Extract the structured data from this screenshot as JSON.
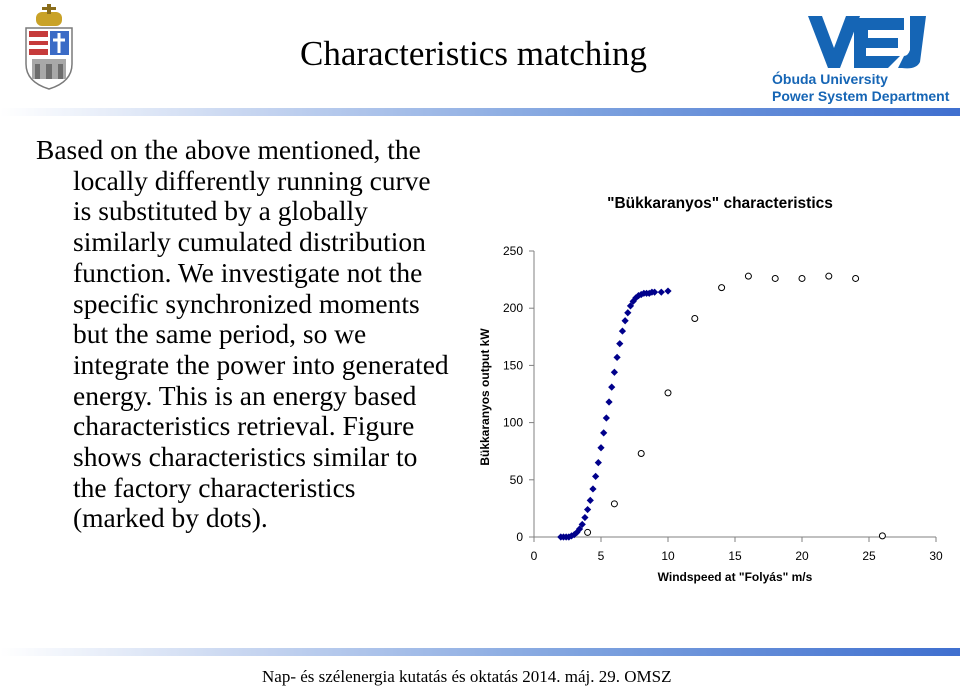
{
  "header": {
    "title": "Characteristics matching",
    "logo_line1": "Óbuda University",
    "logo_line2": "Power System Department",
    "logo_colors": {
      "primary": "#1565b5"
    }
  },
  "body": {
    "paragraph": "Based on the above mentioned, the locally differently running curve is substituted by a globally similarly cumulated distribution function. We investigate not the specific synchronized moments but the same period, so we integrate the power into generated energy. This is an energy based characteristics retrieval. Figure shows characteristics similar to the factory characteristics (marked by dots)."
  },
  "footer": {
    "text": "Nap- és szélenergia kutatás és oktatás 2014. máj. 29. OMSZ"
  },
  "chart_data": {
    "type": "scatter",
    "title": "\"Bükkaranyos\" characteristics",
    "xlabel": "Windspeed at \"Folyás\" m/s",
    "ylabel": "Bükkaranyos output kW",
    "xlim": [
      0,
      30
    ],
    "ylim": [
      0,
      250
    ],
    "xticks": [
      0,
      5,
      10,
      15,
      20,
      25,
      30
    ],
    "yticks": [
      0,
      50,
      100,
      150,
      200,
      250
    ],
    "grid": false,
    "series": [
      {
        "marker": "diamond-filled",
        "color": "#00008b",
        "x": [
          2.0,
          2.2,
          2.4,
          2.6,
          2.8,
          3.0,
          3.2,
          3.4,
          3.6,
          3.8,
          4.0,
          4.2,
          4.4,
          4.6,
          4.8,
          5.0,
          5.2,
          5.4,
          5.6,
          5.8,
          6.0,
          6.2,
          6.4,
          6.6,
          6.8,
          7.0,
          7.2,
          7.4,
          7.6,
          7.8,
          8.0,
          8.2,
          8.4,
          8.6,
          8.8,
          9.0,
          9.5,
          10.0
        ],
        "y": [
          0,
          0,
          0,
          0,
          1,
          2,
          4,
          7,
          11,
          17,
          24,
          32,
          42,
          53,
          65,
          78,
          91,
          104,
          118,
          131,
          144,
          157,
          169,
          180,
          189,
          196,
          202,
          206,
          209,
          211,
          212,
          213,
          213,
          213,
          214,
          214,
          214,
          215
        ]
      },
      {
        "marker": "circle-open",
        "color": "#000000",
        "x": [
          4,
          6,
          8,
          10,
          12,
          14,
          16,
          18,
          20,
          22,
          24,
          26
        ],
        "y": [
          4,
          29,
          73,
          126,
          191,
          218,
          228,
          226,
          226,
          228,
          226,
          1
        ]
      }
    ]
  }
}
